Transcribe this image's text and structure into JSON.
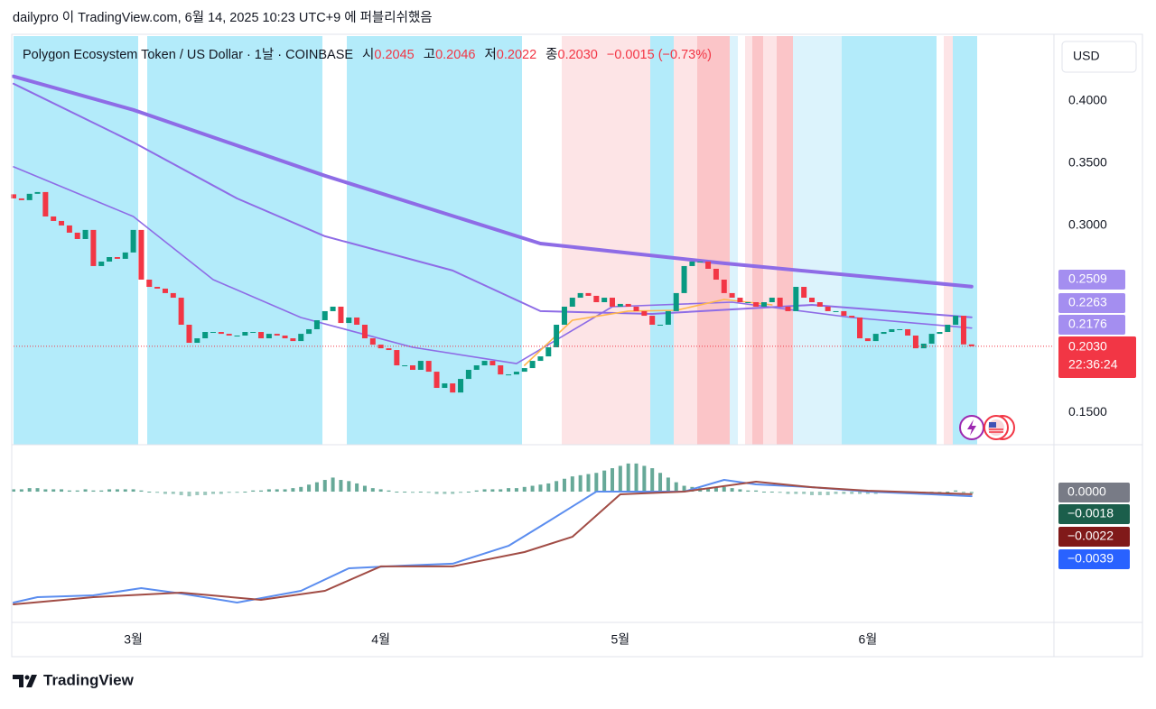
{
  "header": {
    "text": "dailypro 이 TradingView.com, 6월 14, 2025 10:23 UTC+9 에 퍼블리쉬했음"
  },
  "footer": {
    "brand": "TradingView"
  },
  "chart_data": [
    {
      "type": "candlestick",
      "title": "Polygon Ecosystem Token / US Dollar · 1날 · COINBASE",
      "legend": {
        "open_label": "시",
        "open": "0.2045",
        "high_label": "고",
        "high": "0.2046",
        "low_label": "저",
        "low": "0.2022",
        "close_label": "종",
        "close": "0.2030",
        "change": "−0.0015 (−0.73%)"
      },
      "currency": "USD",
      "countdown": "22:36:24",
      "up_color": "#089981",
      "down_color": "#f23645",
      "categories": [
        null,
        null,
        null,
        null,
        null,
        null,
        null,
        null,
        null,
        null,
        null,
        null,
        null,
        null,
        null,
        "3월",
        null,
        null,
        null,
        null,
        null,
        null,
        null,
        null,
        null,
        null,
        null,
        null,
        null,
        null,
        null,
        null,
        null,
        null,
        null,
        null,
        null,
        null,
        null,
        null,
        null,
        null,
        null,
        null,
        null,
        null,
        "4월",
        null,
        null,
        null,
        null,
        null,
        null,
        null,
        null,
        null,
        null,
        null,
        null,
        null,
        null,
        null,
        null,
        null,
        null,
        null,
        null,
        null,
        null,
        null,
        null,
        null,
        null,
        null,
        null,
        null,
        "5월",
        null,
        null,
        null,
        null,
        null,
        null,
        null,
        null,
        null,
        null,
        null,
        null,
        null,
        null,
        null,
        null,
        null,
        null,
        null,
        null,
        null,
        null,
        null,
        null,
        null,
        null,
        null,
        null,
        null,
        null,
        "6월",
        null,
        null,
        null,
        null,
        null,
        null,
        null,
        null,
        null,
        null,
        null,
        null,
        null
      ],
      "open": [
        0.325,
        0.3217,
        0.3203,
        0.3254,
        0.3268,
        0.3072,
        0.3036,
        0.3,
        0.2942,
        0.2891,
        0.2964,
        0.2674,
        0.271,
        0.2746,
        0.2732,
        0.2783,
        0.2964,
        0.2565,
        0.2507,
        0.2493,
        0.2457,
        0.242,
        0.2203,
        0.2058,
        0.2094,
        0.2145,
        0.2145,
        0.213,
        0.2116,
        0.2116,
        0.2145,
        0.2145,
        0.2094,
        0.213,
        0.2116,
        0.2094,
        0.2072,
        0.213,
        0.2167,
        0.2239,
        0.2312,
        0.2348,
        0.2217,
        0.2261,
        0.2203,
        0.2094,
        0.2043,
        0.2014,
        0.2,
        0.1877,
        0.1877,
        0.1841,
        0.1913,
        0.1826,
        0.1696,
        0.1732,
        0.1659,
        0.1768,
        0.1841,
        0.1877,
        0.1913,
        0.1877,
        0.1804,
        0.1804,
        0.1826,
        0.1855,
        0.1913,
        0.1949,
        0.2022,
        0.2203,
        0.2348,
        0.242,
        0.2457,
        0.2435,
        0.2384,
        0.242,
        0.2348,
        0.237,
        0.2348,
        0.2312,
        0.2275,
        0.2203,
        0.2203,
        0.2312,
        0.2457,
        0.2674,
        0.271,
        0.271,
        0.2652,
        0.2565,
        0.2457,
        0.242,
        0.2384,
        0.2384,
        0.2348,
        0.2384,
        0.242,
        0.2348,
        0.2312,
        0.2507,
        0.242,
        0.2384,
        0.2348,
        0.2312,
        0.2312,
        0.2275,
        0.2261,
        0.2094,
        0.2072,
        0.213,
        0.2145,
        0.2167,
        0.2167,
        0.2116,
        0.2014,
        0.2051,
        0.213,
        0.2145,
        0.2203,
        0.2275,
        0.2045
      ],
      "close": [
        0.3217,
        0.3203,
        0.3254,
        0.3268,
        0.3072,
        0.3036,
        0.3,
        0.2942,
        0.2891,
        0.2964,
        0.2674,
        0.271,
        0.2746,
        0.2732,
        0.2783,
        0.2964,
        0.2565,
        0.2507,
        0.2493,
        0.2457,
        0.242,
        0.2203,
        0.2058,
        0.2094,
        0.2145,
        0.2145,
        0.213,
        0.2116,
        0.2116,
        0.2145,
        0.2145,
        0.2094,
        0.213,
        0.2116,
        0.2094,
        0.2072,
        0.213,
        0.2167,
        0.2239,
        0.2312,
        0.2348,
        0.2217,
        0.2261,
        0.2203,
        0.2094,
        0.2043,
        0.2014,
        0.2,
        0.1877,
        0.1877,
        0.1841,
        0.1913,
        0.1826,
        0.1696,
        0.1732,
        0.1659,
        0.1768,
        0.1841,
        0.1877,
        0.1913,
        0.1877,
        0.1804,
        0.1804,
        0.1826,
        0.1855,
        0.1913,
        0.1949,
        0.2022,
        0.2203,
        0.2348,
        0.242,
        0.2457,
        0.2435,
        0.2384,
        0.242,
        0.2348,
        0.237,
        0.2348,
        0.2312,
        0.2275,
        0.2203,
        0.2203,
        0.2312,
        0.2457,
        0.2674,
        0.271,
        0.271,
        0.2652,
        0.2565,
        0.2457,
        0.242,
        0.2384,
        0.2384,
        0.2348,
        0.2384,
        0.242,
        0.2348,
        0.2312,
        0.2507,
        0.242,
        0.2384,
        0.2348,
        0.2312,
        0.2312,
        0.2275,
        0.2261,
        0.2094,
        0.2072,
        0.213,
        0.2145,
        0.2167,
        0.2167,
        0.2116,
        0.2014,
        0.2051,
        0.213,
        0.2145,
        0.2203,
        0.2275,
        0.2045,
        0.203
      ],
      "series": [
        {
          "color": "#8e6ce6",
          "x": [
            0,
            15,
            39,
            66,
            89,
            120
          ],
          "values": [
            0.4196,
            0.3928,
            0.3399,
            0.2855,
            0.2696,
            0.2509
          ]
        },
        {
          "color": "#8e6ce6",
          "x": [
            0,
            15,
            28,
            39,
            55,
            66,
            80,
            100,
            120
          ],
          "values": [
            0.4138,
            0.3667,
            0.3217,
            0.2913,
            0.2638,
            0.2312,
            0.229,
            0.2362,
            0.2263
          ]
        },
        {
          "color": "#8e6ce6",
          "x": [
            0,
            15,
            25,
            36,
            50,
            63,
            75,
            90,
            105,
            120
          ],
          "values": [
            0.3471,
            0.3072,
            0.2565,
            0.2261,
            0.2022,
            0.1891,
            0.2348,
            0.2384,
            0.2261,
            0.2176
          ]
        },
        {
          "color": "#ffb74d",
          "x": [
            64,
            70,
            77,
            83,
            89,
            95
          ],
          "values": [
            0.1877,
            0.2239,
            0.2312,
            0.2319,
            0.2406,
            0.2362
          ]
        }
      ],
      "ylim": [
        0.124,
        0.452
      ],
      "yticks": [
        {
          "value": 0.4,
          "label": "0.4000"
        },
        {
          "value": 0.35,
          "label": "0.3500"
        },
        {
          "value": 0.3,
          "label": "0.3000"
        },
        {
          "value": 0.15,
          "label": "0.1500"
        }
      ]
    },
    {
      "type": "macd",
      "histogram_color": "#4c9a86",
      "histogram": [
        0.002,
        0.002,
        0.003,
        0.003,
        0.002,
        0.002,
        0.002,
        0.001,
        0.001,
        0.002,
        0.001,
        0.001,
        0.002,
        0.002,
        0.002,
        0.002,
        0.001,
        0,
        -0.001,
        -0.002,
        -0.002,
        -0.003,
        -0.004,
        -0.003,
        -0.003,
        -0.002,
        -0.002,
        -0.001,
        -0.001,
        0,
        0.001,
        0.001,
        0.002,
        0.002,
        0.002,
        0.003,
        0.004,
        0.006,
        0.008,
        0.01,
        0.012,
        0.01,
        0.009,
        0.007,
        0.005,
        0.003,
        0.002,
        0.001,
        0,
        0,
        -0.001,
        0,
        -0.001,
        -0.002,
        -0.002,
        -0.002,
        -0.001,
        0,
        0.001,
        0.002,
        0.002,
        0.002,
        0.003,
        0.003,
        0.004,
        0.005,
        0.006,
        0.007,
        0.009,
        0.011,
        0.013,
        0.014,
        0.015,
        0.016,
        0.018,
        0.02,
        0.022,
        0.024,
        0.024,
        0.022,
        0.02,
        0.016,
        0.012,
        0.008,
        0.005,
        0.004,
        0.003,
        0.003,
        0.004,
        0.004,
        0.003,
        0.002,
        0.001,
        0.001,
        0,
        0,
        -0.001,
        -0.002,
        -0.002,
        -0.002,
        -0.003,
        -0.003,
        -0.003,
        -0.002,
        -0.002,
        -0.002,
        -0.002,
        -0.002,
        -0.002,
        -0.001,
        -0.001,
        -0.001,
        -0.002,
        -0.002,
        -0.002,
        -0.001,
        -0.001,
        0,
        0.001,
        -0.001,
        -0.0018
      ],
      "series": [
        {
          "color": "#5b8def",
          "x": [
            0,
            3,
            10,
            16,
            21,
            28,
            36,
            42,
            49,
            55,
            62,
            67,
            73,
            84,
            89,
            93,
            100,
            107,
            115,
            120
          ],
          "values": [
            -0.0946,
            -0.09,
            -0.0885,
            -0.0823,
            -0.0869,
            -0.0946,
            -0.0846,
            -0.0654,
            -0.0631,
            -0.0615,
            -0.0462,
            -0.0254,
            0,
            0,
            0.01,
            0.0062,
            0.0038,
            0,
            -0.0023,
            -0.0039
          ]
        },
        {
          "color": "#a14c45",
          "x": [
            0,
            10,
            21,
            31,
            39,
            46,
            55,
            64,
            70,
            76,
            84,
            93,
            100,
            107,
            120
          ],
          "values": [
            -0.0962,
            -0.09,
            -0.0862,
            -0.0923,
            -0.0846,
            -0.0638,
            -0.0638,
            -0.0515,
            -0.0385,
            -0.0023,
            0,
            0.0085,
            0.0038,
            0.0008,
            -0.0022
          ]
        }
      ],
      "ylim": [
        -0.1408,
        0.0385
      ],
      "scale_labels": [
        {
          "value": 0,
          "label": "0.0000",
          "color": "#787b86"
        },
        {
          "value": -0.0018,
          "label": "−0.0018",
          "color": "#1b5e4b"
        },
        {
          "value": -0.0022,
          "label": "−0.0022",
          "color": "#801919"
        },
        {
          "value": -0.0039,
          "label": "−0.0039",
          "color": "#2962ff"
        }
      ]
    }
  ]
}
